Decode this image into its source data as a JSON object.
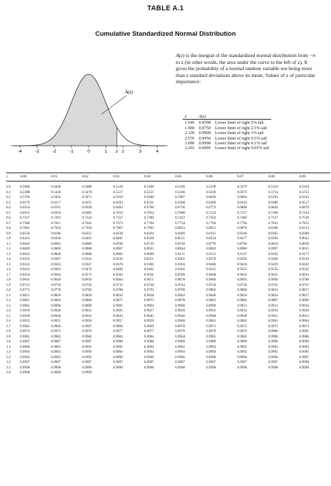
{
  "header": {
    "table_number": "Table A.1",
    "title": "Cumulative Standardized Normal Distribution"
  },
  "description": {
    "line1_symbol": "A(z)",
    "line1_rest": " is the integral of the standardized normal",
    "body": "distribution from −∞ to z (in other words, the area under the curve to the left of z). It gives the probability of a normal random variable not being more than z standard deviations above its mean. Values of z of particular importance:"
  },
  "curve": {
    "label": "A(z)",
    "x_ticks": [
      "-4",
      "-3",
      "-2",
      "-1",
      "0",
      "1",
      "z",
      "2",
      "3",
      "4"
    ]
  },
  "key_values": {
    "headers": [
      "z",
      "A(z)",
      ""
    ],
    "rows": [
      [
        "1.645",
        "0.9500",
        "Lower limit of right 5% tail"
      ],
      [
        "1.960",
        "0.9750",
        "Lower limit of right 2.5% tail"
      ],
      [
        "2.326",
        "0.9900",
        "Lower limit of right 1% tail"
      ],
      [
        "2.576",
        "0.9950",
        "Lower limit of right 0.5% tail"
      ],
      [
        "3.090",
        "0.9990",
        "Lower limit of right 0.1% tail"
      ],
      [
        "3.291",
        "0.9995",
        "Lower limit of right 0.05% tail"
      ]
    ]
  },
  "table": {
    "headers": [
      "z",
      "0.00",
      "0.01",
      "0.02",
      "0.03",
      "0.04",
      "0.05",
      "0.06",
      "0.07",
      "0.08",
      "0.09"
    ],
    "rows": [
      [
        "0.0",
        "0.5000",
        "0.5040",
        "0.5080",
        "0.5120",
        "0.5160",
        "0.5199",
        "0.5239",
        "0.5279",
        "0.5319",
        "0.5359"
      ],
      [
        "0.1",
        "0.5398",
        "0.5438",
        "0.5478",
        "0.5517",
        "0.5557",
        "0.5596",
        "0.5636",
        "0.5675",
        "0.5714",
        "0.5753"
      ],
      [
        "0.2",
        "0.5793",
        "0.5832",
        "0.5871",
        "0.5910",
        "0.5948",
        "0.5987",
        "0.6026",
        "0.6064",
        "0.6103",
        "0.6141"
      ],
      [
        "0.3",
        "0.6179",
        "0.6217",
        "0.6255",
        "0.6293",
        "0.6331",
        "0.6368",
        "0.6406",
        "0.6443",
        "0.6480",
        "0.6517"
      ],
      [
        "0.4",
        "0.6554",
        "0.6591",
        "0.6628",
        "0.6664",
        "0.6700",
        "0.6736",
        "0.6772",
        "0.6808",
        "0.6844",
        "0.6879"
      ],
      [
        "0.5",
        "0.6915",
        "0.6950",
        "0.6985",
        "0.7019",
        "0.7054",
        "0.7088",
        "0.7123",
        "0.7157",
        "0.7190",
        "0.7224"
      ],
      [
        "0.6",
        "0.7257",
        "0.7291",
        "0.7324",
        "0.7357",
        "0.7389",
        "0.7422",
        "0.7454",
        "0.7486",
        "0.7517",
        "0.7549"
      ],
      [
        "0.7",
        "0.7580",
        "0.7611",
        "0.7642",
        "0.7673",
        "0.7704",
        "0.7734",
        "0.7764",
        "0.7794",
        "0.7823",
        "0.7852"
      ],
      [
        "0.8",
        "0.7881",
        "0.7910",
        "0.7939",
        "0.7967",
        "0.7995",
        "0.8023",
        "0.8051",
        "0.8078",
        "0.8106",
        "0.8133"
      ],
      [
        "0.9",
        "0.8159",
        "0.8186",
        "0.8212",
        "0.8238",
        "0.8264",
        "0.8289",
        "0.8315",
        "0.8340",
        "0.8365",
        "0.8389"
      ],
      [
        "1.0",
        "0.8413",
        "0.8438",
        "0.8461",
        "0.8485",
        "0.8508",
        "0.8531",
        "0.8554",
        "0.8577",
        "0.8599",
        "0.8621"
      ],
      [
        "1.1",
        "0.8643",
        "0.8665",
        "0.8686",
        "0.8708",
        "0.8729",
        "0.8749",
        "0.8770",
        "0.8790",
        "0.8810",
        "0.8830"
      ],
      [
        "1.2",
        "0.8849",
        "0.8869",
        "0.8888",
        "0.8907",
        "0.8925",
        "0.8944",
        "0.8962",
        "0.8980",
        "0.8997",
        "0.9015"
      ],
      [
        "1.3",
        "0.9032",
        "0.9049",
        "0.9066",
        "0.9082",
        "0.9099",
        "0.9115",
        "0.9131",
        "0.9147",
        "0.9162",
        "0.9177"
      ],
      [
        "1.4",
        "0.9192",
        "0.9207",
        "0.9222",
        "0.9236",
        "0.9251",
        "0.9265",
        "0.9279",
        "0.9292",
        "0.9306",
        "0.9319"
      ],
      [
        "1.5",
        "0.9332",
        "0.9345",
        "0.9357",
        "0.9370",
        "0.9382",
        "0.9394",
        "0.9406",
        "0.9418",
        "0.9429",
        "0.9441"
      ],
      [
        "1.6",
        "0.9452",
        "0.9463",
        "0.9474",
        "0.9484",
        "0.9495",
        "0.9505",
        "0.9515",
        "0.9525",
        "0.9535",
        "0.9545"
      ],
      [
        "1.7",
        "0.9554",
        "0.9564",
        "0.9573",
        "0.9582",
        "0.9591",
        "0.9599",
        "0.9608",
        "0.9616",
        "0.9625",
        "0.9633"
      ],
      [
        "1.8",
        "0.9641",
        "0.9649",
        "0.9656",
        "0.9664",
        "0.9671",
        "0.9678",
        "0.9686",
        "0.9693",
        "0.9699",
        "0.9706"
      ],
      [
        "1.9",
        "0.9713",
        "0.9719",
        "0.9726",
        "0.9732",
        "0.9738",
        "0.9744",
        "0.9750",
        "0.9756",
        "0.9761",
        "0.9767"
      ],
      [
        "2.0",
        "0.9772",
        "0.9778",
        "0.9783",
        "0.9788",
        "0.9793",
        "0.9798",
        "0.9803",
        "0.9808",
        "0.9812",
        "0.9817"
      ],
      [
        "2.1",
        "0.9821",
        "0.9826",
        "0.9830",
        "0.9834",
        "0.9838",
        "0.9842",
        "0.9846",
        "0.9850",
        "0.9854",
        "0.9857"
      ],
      [
        "2.2",
        "0.9861",
        "0.9864",
        "0.9868",
        "0.9871",
        "0.9875",
        "0.9878",
        "0.9881",
        "0.9884",
        "0.9887",
        "0.9890"
      ],
      [
        "2.3",
        "0.9893",
        "0.9896",
        "0.9898",
        "0.9901",
        "0.9904",
        "0.9906",
        "0.9909",
        "0.9911",
        "0.9913",
        "0.9916"
      ],
      [
        "2.4",
        "0.9918",
        "0.9920",
        "0.9922",
        "0.9925",
        "0.9927",
        "0.9929",
        "0.9931",
        "0.9932",
        "0.9934",
        "0.9936"
      ],
      [
        "2.5",
        "0.9938",
        "0.9940",
        "0.9941",
        "0.9943",
        "0.9945",
        "0.9946",
        "0.9948",
        "0.9949",
        "0.9951",
        "0.9952"
      ],
      [
        "2.6",
        "0.9953",
        "0.9955",
        "0.9956",
        "0.9957",
        "0.9959",
        "0.9960",
        "0.9961",
        "0.9962",
        "0.9963",
        "0.9964"
      ],
      [
        "2.7",
        "0.9965",
        "0.9966",
        "0.9967",
        "0.9968",
        "0.9969",
        "0.9970",
        "0.9971",
        "0.9972",
        "0.9973",
        "0.9974"
      ],
      [
        "2.8",
        "0.9974",
        "0.9975",
        "0.9976",
        "0.9977",
        "0.9977",
        "0.9978",
        "0.9979",
        "0.9979",
        "0.9980",
        "0.9981"
      ],
      [
        "2.9",
        "0.9981",
        "0.9982",
        "0.9982",
        "0.9983",
        "0.9984",
        "0.9984",
        "0.9985",
        "0.9985",
        "0.9986",
        "0.9986"
      ],
      [
        "3.0",
        "0.9987",
        "0.9987",
        "0.9987",
        "0.9988",
        "0.9988",
        "0.9989",
        "0.9989",
        "0.9989",
        "0.9990",
        "0.9990"
      ],
      [
        "3.1",
        "0.9990",
        "0.9991",
        "0.9991",
        "0.9991",
        "0.9992",
        "0.9992",
        "0.9992",
        "0.9992",
        "0.9993",
        "0.9993"
      ],
      [
        "3.2",
        "0.9993",
        "0.9993",
        "0.9994",
        "0.9994",
        "0.9994",
        "0.9994",
        "0.9994",
        "0.9995",
        "0.9995",
        "0.9995"
      ],
      [
        "3.3",
        "0.9995",
        "0.9995",
        "0.9995",
        "0.9996",
        "0.9996",
        "0.9996",
        "0.9996",
        "0.9996",
        "0.9996",
        "0.9997"
      ],
      [
        "3.4",
        "0.9997",
        "0.9997",
        "0.9997",
        "0.9997",
        "0.9997",
        "0.9997",
        "0.9997",
        "0.9997",
        "0.9997",
        "0.9998"
      ],
      [
        "3.5",
        "0.9998",
        "0.9998",
        "0.9998",
        "0.9998",
        "0.9998",
        "0.9998",
        "0.9998",
        "0.9998",
        "0.9998",
        "0.9998"
      ],
      [
        "3.6",
        "0.9998",
        "0.9998",
        "0.9999",
        "",
        "",
        "",
        "",
        "",
        "",
        ""
      ]
    ]
  }
}
